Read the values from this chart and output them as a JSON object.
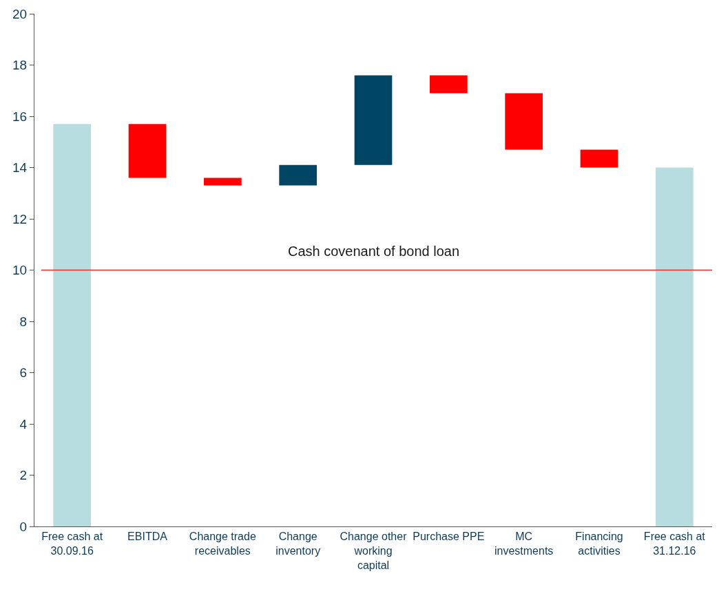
{
  "chart_data": {
    "type": "bar",
    "categories": [
      "Free cash at 30.09.16",
      "EBITDA",
      "Change trade receivables",
      "Change inventory",
      "Change other working capital",
      "Purchase PPE",
      "MC investments",
      "Financing activities",
      "Free cash at 31.12.16"
    ],
    "values": [
      15.7,
      -2.1,
      -0.3,
      0.8,
      3.5,
      -0.7,
      -2.2,
      -0.7,
      14.0
    ],
    "base": [
      0,
      15.7,
      13.6,
      13.3,
      14.1,
      17.6,
      16.9,
      14.7,
      0
    ],
    "colors": [
      "#b7dde0",
      "#ff0000",
      "#ff0000",
      "#004563",
      "#004563",
      "#ff0000",
      "#ff0000",
      "#ff0000",
      "#b7dde0"
    ],
    "ylim": [
      0,
      20
    ],
    "yticks": [
      0,
      2,
      4,
      6,
      8,
      10,
      12,
      14,
      16,
      18,
      20
    ],
    "ref_lines": [
      {
        "axis": "y",
        "value": 10,
        "label": "Cash covenant of bond loan",
        "color": "#e0302a"
      }
    ]
  }
}
